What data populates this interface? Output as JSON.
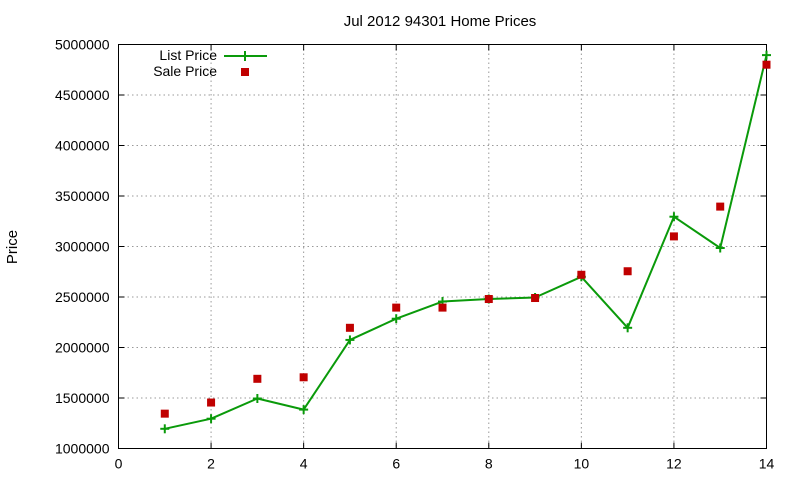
{
  "chart_data": {
    "type": "line",
    "title": "Jul 2012 94301 Home Prices",
    "xlabel": "",
    "ylabel": "Price",
    "xlim": [
      0,
      14
    ],
    "ylim": [
      1000000,
      5000000
    ],
    "xticks": [
      "0",
      "2",
      "4",
      "6",
      "8",
      "10",
      "12",
      "14"
    ],
    "yticks": [
      "1000000",
      "1500000",
      "2000000",
      "2500000",
      "3000000",
      "3500000",
      "4000000",
      "4500000",
      "5000000"
    ],
    "grid": true,
    "legend_position": "top-left",
    "series": [
      {
        "name": "List Price",
        "style": "line+cross",
        "color": "#0a9a0a",
        "x": [
          1,
          2,
          3,
          4,
          5,
          6,
          7,
          8,
          9,
          10,
          11,
          12,
          13,
          14
        ],
        "y": [
          1195000,
          1295000,
          1495000,
          1385000,
          2075000,
          2285000,
          2455000,
          2480000,
          2495000,
          2700000,
          2195000,
          3295000,
          2985000,
          4895000
        ]
      },
      {
        "name": "Sale Price",
        "style": "square",
        "color": "#c00000",
        "x": [
          1,
          2,
          3,
          4,
          5,
          6,
          7,
          8,
          9,
          10,
          11,
          12,
          13,
          14
        ],
        "y": [
          1345000,
          1455000,
          1690000,
          1705000,
          2195000,
          2395000,
          2395000,
          2480000,
          2490000,
          2720000,
          2755000,
          3100000,
          3395000,
          4800000
        ]
      }
    ]
  }
}
